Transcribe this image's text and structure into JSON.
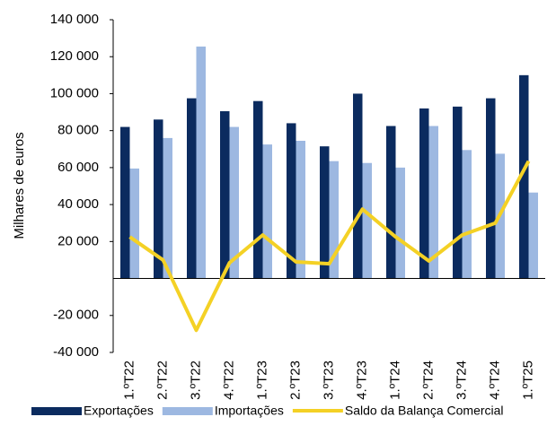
{
  "chart_data": {
    "type": "bar_line",
    "y_label": "Milhares de euros",
    "categories": [
      "1.ºT22",
      "2.ºT22",
      "3.ºT22",
      "4.ºT22",
      "1.ºT23",
      "2.ºT23",
      "3.ºT23",
      "4.ºT23",
      "1.ºT24",
      "2.ºT24",
      "3.ºT24",
      "4.ºT24",
      "1.ºT25"
    ],
    "series": [
      {
        "name": "Exportações",
        "color": "#0b2b5f",
        "kind": "bar",
        "values": [
          82000,
          86000,
          97500,
          90500,
          96000,
          84000,
          71500,
          100000,
          82500,
          92000,
          93000,
          97500,
          110000
        ]
      },
      {
        "name": "Importações",
        "color": "#9db8e1",
        "kind": "bar",
        "values": [
          59500,
          76000,
          125500,
          82000,
          72500,
          74500,
          63500,
          62500,
          60000,
          82500,
          69500,
          67500,
          46500
        ]
      },
      {
        "name": "Saldo da Balança Comercial",
        "color": "#f4d125",
        "kind": "line",
        "values": [
          22500,
          10000,
          -28000,
          8500,
          23500,
          9000,
          8000,
          37500,
          22500,
          9500,
          23500,
          30000,
          63500
        ]
      }
    ],
    "ylim": [
      -40000,
      140000
    ],
    "yticks": [
      {
        "value": 140000,
        "label": "140 000"
      },
      {
        "value": 120000,
        "label": "120 000"
      },
      {
        "value": 100000,
        "label": "100 000"
      },
      {
        "value": 80000,
        "label": "80 000"
      },
      {
        "value": 60000,
        "label": "60 000"
      },
      {
        "value": 40000,
        "label": "40 000"
      },
      {
        "value": 20000,
        "label": "20 000"
      },
      {
        "value": -20000,
        "label": "-20 000"
      },
      {
        "value": -40000,
        "label": "-40 000"
      }
    ],
    "legend": "bottom"
  }
}
